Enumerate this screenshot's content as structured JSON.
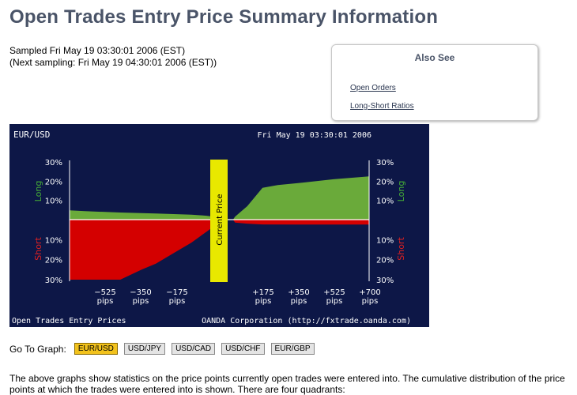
{
  "page": {
    "title": "Open Trades Entry Price Summary Information",
    "sampled": "Sampled Fri May 19 03:30:01 2006 (EST)",
    "next_sampling": "(Next sampling: Fri May 19 04:30:01 2006 (EST))"
  },
  "also_see": {
    "title": "Also See",
    "links": [
      "Open Orders",
      "Long-Short Ratios"
    ]
  },
  "goto": {
    "label": "Go To Graph:",
    "pairs": [
      "EUR/USD",
      "USD/JPY",
      "USD/CAD",
      "USD/CHF",
      "EUR/GBP"
    ],
    "active": "EUR/USD"
  },
  "description": "The above graphs show statistics on the price points currently open trades were entered into. The cumulative distribution of the price points at which the trades were entered into is shown. There are four quadrants:",
  "chart_data": {
    "type": "area",
    "title": "EUR/USD",
    "timestamp": "Fri May 19 03:30:01 2006",
    "footer_left": "Open Trades Entry Prices",
    "footer_right": "OANDA Corporation (http://fxtrade.oanda.com)",
    "center_label": "Current Price",
    "long_label": "Long",
    "short_label": "Short",
    "x_unit": "pips",
    "x_range": [
      -775,
      700
    ],
    "y_range": [
      0,
      30
    ],
    "y_ticks": [
      10,
      20,
      30
    ],
    "y_tick_labels": [
      "10%",
      "20%",
      "30%"
    ],
    "x_ticks": [
      -525,
      -350,
      -175,
      175,
      350,
      525,
      700
    ],
    "x_tick_labels": [
      "−525",
      "−350",
      "−175",
      "+175",
      "+350",
      "+525",
      "+700"
    ],
    "colors": {
      "background": "#0d1747",
      "long": "#6aaa3a",
      "short": "#d40000",
      "center_bar": "#e8e800",
      "long_label": "#46b036",
      "short_label": "#e02020"
    },
    "series": [
      {
        "name": "Long",
        "x": [
          -775,
          -700,
          -525,
          -350,
          -175,
          -100,
          -40,
          -30,
          0,
          30,
          40,
          100,
          175,
          250,
          350,
          525,
          700
        ],
        "values": [
          4.8,
          4.4,
          3.7,
          3.2,
          2.6,
          2.0,
          1.2,
          0,
          0,
          0,
          1.5,
          7.0,
          16.5,
          18,
          19,
          21,
          22.5
        ]
      },
      {
        "name": "Short",
        "x": [
          -775,
          -700,
          -525,
          -420,
          -350,
          -250,
          -175,
          -100,
          -40,
          -30,
          0,
          30,
          40,
          100,
          175,
          350,
          525,
          700
        ],
        "values": [
          30,
          30,
          30,
          25,
          22,
          16,
          11.5,
          6,
          1.5,
          0,
          0,
          0,
          1.5,
          2.0,
          2.4,
          2.5,
          2.5,
          2.5
        ]
      }
    ]
  }
}
